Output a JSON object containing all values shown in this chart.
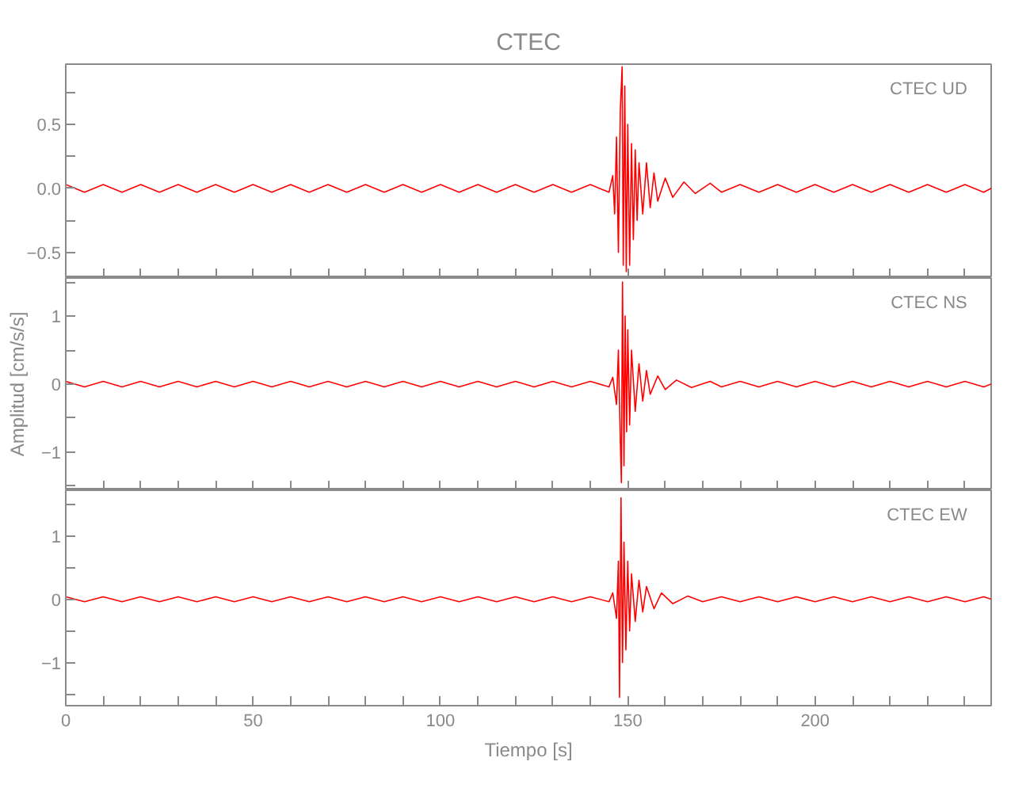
{
  "chart_data": [
    {
      "type": "line",
      "title": "CTEC",
      "annotations": [
        "CTEC   UD"
      ],
      "xlim": [
        0,
        247
      ],
      "xticks": [
        0,
        {
          "value": 10,
          "label": null
        },
        {
          "value": 20,
          "label": null
        },
        {
          "value": 30,
          "label": null
        },
        {
          "value": 40,
          "label": null
        },
        50,
        {
          "value": 60,
          "label": null
        },
        {
          "value": 70,
          "label": null
        },
        {
          "value": 80,
          "label": null
        },
        {
          "value": 90,
          "label": null
        },
        100,
        {
          "value": 110,
          "label": null
        },
        {
          "value": 120,
          "label": null
        },
        {
          "value": 130,
          "label": null
        },
        {
          "value": 140,
          "label": null
        },
        150,
        {
          "value": 160,
          "label": null
        },
        {
          "value": 170,
          "label": null
        },
        {
          "value": 180,
          "label": null
        },
        {
          "value": 190,
          "label": null
        },
        200,
        {
          "value": 210,
          "label": null
        },
        {
          "value": 220,
          "label": null
        },
        {
          "value": 230,
          "label": null
        },
        {
          "value": 240,
          "label": null
        }
      ],
      "ylim": [
        -0.7,
        0.97
      ],
      "yticks": [
        {
          "value": -0.5,
          "label": "−0.5"
        },
        {
          "value": -0.25,
          "label": null
        },
        {
          "value": 0,
          "label": "0.0"
        },
        {
          "value": 0.25,
          "label": null
        },
        0.5,
        {
          "value": 0.75,
          "label": null
        }
      ],
      "tick_labels": "y",
      "grid": false,
      "x": [
        0,
        5,
        10,
        15,
        20,
        25,
        30,
        35,
        40,
        45,
        50,
        55,
        60,
        65,
        70,
        75,
        80,
        85,
        90,
        95,
        100,
        105,
        110,
        115,
        120,
        125,
        130,
        135,
        140,
        145,
        146,
        146.5,
        147,
        147.5,
        148,
        148.5,
        148.8,
        149.2,
        149.6,
        150,
        150.5,
        151,
        151.5,
        152,
        152.5,
        153,
        154,
        155,
        156,
        157,
        158,
        160,
        162,
        165,
        168,
        172,
        175,
        180,
        185,
        190,
        195,
        200,
        205,
        210,
        215,
        220,
        225,
        230,
        235,
        240,
        245,
        247
      ],
      "series": [
        {
          "color": "#ff0000",
          "values": [
            0.03,
            -0.03,
            0.03,
            -0.03,
            0.03,
            -0.03,
            0.03,
            -0.03,
            0.03,
            -0.03,
            0.03,
            -0.03,
            0.03,
            -0.03,
            0.03,
            -0.03,
            0.03,
            -0.03,
            0.03,
            -0.03,
            0.03,
            -0.03,
            0.03,
            -0.03,
            0.03,
            -0.03,
            0.03,
            -0.03,
            0.03,
            -0.03,
            0.1,
            -0.2,
            0.4,
            -0.5,
            0.6,
            0.95,
            -0.6,
            0.8,
            -0.65,
            0.5,
            -0.6,
            0.35,
            -0.4,
            0.3,
            -0.25,
            0.2,
            -0.2,
            0.2,
            -0.15,
            0.12,
            -0.1,
            0.08,
            -0.07,
            0.05,
            -0.04,
            0.04,
            -0.03,
            0.03,
            -0.03,
            0.03,
            -0.03,
            0.03,
            -0.03,
            0.03,
            -0.03,
            0.03,
            -0.03,
            0.03,
            -0.03,
            0.03,
            -0.03,
            0
          ]
        }
      ]
    },
    {
      "type": "line",
      "annotations": [
        "CTEC   NS"
      ],
      "ylabel": "Amplitud [cm/s/s]",
      "xlim": [
        0,
        247
      ],
      "xticks": [
        0,
        {
          "value": 10,
          "label": null
        },
        {
          "value": 20,
          "label": null
        },
        {
          "value": 30,
          "label": null
        },
        {
          "value": 40,
          "label": null
        },
        50,
        {
          "value": 60,
          "label": null
        },
        {
          "value": 70,
          "label": null
        },
        {
          "value": 80,
          "label": null
        },
        {
          "value": 90,
          "label": null
        },
        100,
        {
          "value": 110,
          "label": null
        },
        {
          "value": 120,
          "label": null
        },
        {
          "value": 130,
          "label": null
        },
        {
          "value": 140,
          "label": null
        },
        150,
        {
          "value": 160,
          "label": null
        },
        {
          "value": 170,
          "label": null
        },
        {
          "value": 180,
          "label": null
        },
        {
          "value": 190,
          "label": null
        },
        200,
        {
          "value": 210,
          "label": null
        },
        {
          "value": 220,
          "label": null
        },
        {
          "value": 230,
          "label": null
        },
        {
          "value": 240,
          "label": null
        }
      ],
      "ylim": [
        -1.56,
        1.56
      ],
      "yticks": [
        {
          "value": -1.5,
          "label": null
        },
        {
          "value": -1,
          "label": "−1"
        },
        {
          "value": -0.5,
          "label": null
        },
        0,
        {
          "value": 0.5,
          "label": null
        },
        1,
        {
          "value": 1.5,
          "label": null
        }
      ],
      "tick_labels": "y",
      "grid": false,
      "x": [
        0,
        5,
        10,
        15,
        20,
        25,
        30,
        35,
        40,
        45,
        50,
        55,
        60,
        65,
        70,
        75,
        80,
        85,
        90,
        95,
        100,
        105,
        110,
        115,
        120,
        125,
        130,
        135,
        140,
        145,
        146,
        147,
        147.5,
        148,
        148.3,
        148.6,
        149,
        149.3,
        149.7,
        150,
        150.5,
        151,
        152,
        153,
        154,
        155,
        156,
        158,
        160,
        163,
        167,
        172,
        175,
        180,
        185,
        190,
        195,
        200,
        205,
        210,
        215,
        220,
        225,
        230,
        235,
        240,
        245,
        247
      ],
      "series": [
        {
          "color": "#ff0000",
          "values": [
            0.04,
            -0.04,
            0.04,
            -0.04,
            0.04,
            -0.04,
            0.04,
            -0.04,
            0.04,
            -0.04,
            0.04,
            -0.04,
            0.04,
            -0.04,
            0.04,
            -0.04,
            0.04,
            -0.04,
            0.04,
            -0.04,
            0.04,
            -0.04,
            0.04,
            -0.04,
            0.04,
            -0.04,
            0.04,
            -0.04,
            0.04,
            -0.04,
            0.1,
            -0.3,
            0.5,
            -0.8,
            -1.45,
            1.5,
            -1.2,
            1.0,
            -0.7,
            0.8,
            -0.6,
            0.5,
            -0.4,
            0.3,
            -0.25,
            0.2,
            -0.15,
            0.12,
            -0.08,
            0.06,
            -0.05,
            0.04,
            -0.04,
            0.04,
            -0.04,
            0.04,
            -0.04,
            0.04,
            -0.04,
            0.04,
            -0.04,
            0.04,
            -0.04,
            0.04,
            -0.04,
            0.04,
            -0.04,
            0
          ]
        }
      ]
    },
    {
      "type": "line",
      "annotations": [
        "CTEC   EW"
      ],
      "xlabel": "Tiempo [s]",
      "xlim": [
        0,
        247
      ],
      "xticks": [
        0,
        {
          "value": 10,
          "label": null
        },
        {
          "value": 20,
          "label": null
        },
        {
          "value": 30,
          "label": null
        },
        {
          "value": 40,
          "label": null
        },
        50,
        {
          "value": 60,
          "label": null
        },
        {
          "value": 70,
          "label": null
        },
        {
          "value": 80,
          "label": null
        },
        {
          "value": 90,
          "label": null
        },
        100,
        {
          "value": 110,
          "label": null
        },
        {
          "value": 120,
          "label": null
        },
        {
          "value": 130,
          "label": null
        },
        {
          "value": 140,
          "label": null
        },
        150,
        {
          "value": 160,
          "label": null
        },
        {
          "value": 170,
          "label": null
        },
        {
          "value": 180,
          "label": null
        },
        {
          "value": 190,
          "label": null
        },
        200,
        {
          "value": 210,
          "label": null
        },
        {
          "value": 220,
          "label": null
        },
        {
          "value": 230,
          "label": null
        },
        {
          "value": 240,
          "label": null
        }
      ],
      "ylim": [
        -1.68,
        1.72
      ],
      "yticks": [
        {
          "value": -1.5,
          "label": null
        },
        {
          "value": -1,
          "label": "−1"
        },
        {
          "value": -0.5,
          "label": null
        },
        0,
        {
          "value": 0.5,
          "label": null
        },
        1,
        {
          "value": 1.5,
          "label": null
        }
      ],
      "grid": false,
      "x": [
        0,
        5,
        10,
        15,
        20,
        25,
        30,
        35,
        40,
        45,
        50,
        55,
        60,
        65,
        70,
        75,
        80,
        85,
        90,
        95,
        100,
        105,
        110,
        115,
        120,
        125,
        130,
        135,
        140,
        145,
        146,
        147,
        147.5,
        147.8,
        148.2,
        148.6,
        149,
        149.5,
        150,
        150.5,
        151,
        152,
        153,
        154,
        155,
        157,
        159,
        162,
        166,
        170,
        175,
        180,
        185,
        190,
        195,
        200,
        205,
        210,
        215,
        220,
        225,
        230,
        235,
        240,
        245,
        247
      ],
      "series": [
        {
          "color": "#ff0000",
          "values": [
            0.04,
            -0.04,
            0.04,
            -0.04,
            0.04,
            -0.04,
            0.04,
            -0.04,
            0.04,
            -0.04,
            0.04,
            -0.04,
            0.04,
            -0.04,
            0.04,
            -0.04,
            0.04,
            -0.04,
            0.04,
            -0.04,
            0.04,
            -0.04,
            0.04,
            -0.04,
            0.04,
            -0.04,
            0.04,
            -0.04,
            0.04,
            -0.04,
            0.1,
            -0.3,
            0.6,
            -1.55,
            1.6,
            -1.0,
            0.9,
            -0.8,
            0.6,
            -0.5,
            0.4,
            -0.35,
            0.3,
            -0.2,
            0.2,
            -0.15,
            0.1,
            -0.07,
            0.05,
            -0.04,
            0.04,
            -0.04,
            0.04,
            -0.04,
            0.04,
            -0.04,
            0.04,
            -0.04,
            0.04,
            -0.04,
            0.04,
            -0.04,
            0.04,
            -0.04,
            0.04,
            0
          ]
        }
      ]
    }
  ]
}
